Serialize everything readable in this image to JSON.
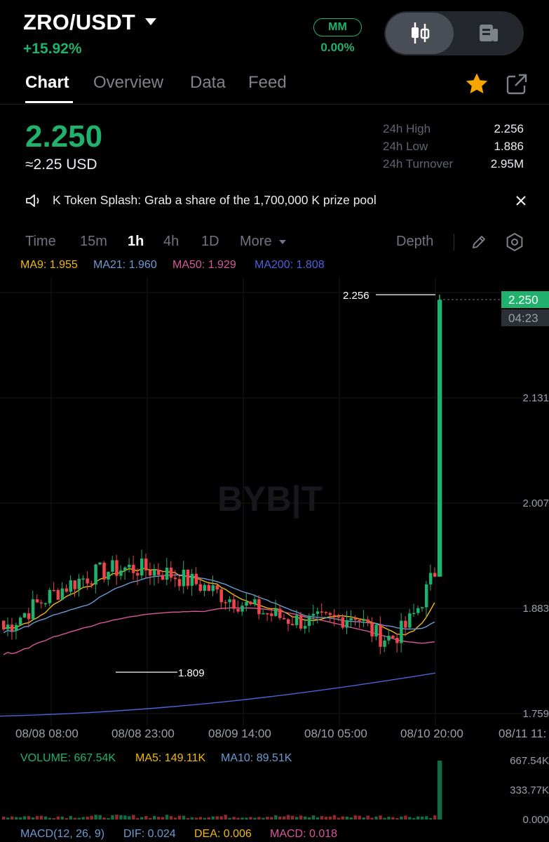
{
  "header": {
    "pair": "ZRO/USDT",
    "change": "+15.92%",
    "mm_label": "MM",
    "mm_value": "0.00%"
  },
  "tabs": [
    {
      "label": "Chart",
      "active": true
    },
    {
      "label": "Overview",
      "active": false
    },
    {
      "label": "Data",
      "active": false
    },
    {
      "label": "Feed",
      "active": false
    }
  ],
  "price": {
    "last": "2.250",
    "usd": "≈2.25 USD"
  },
  "stats": [
    {
      "label": "24h High",
      "value": "2.256"
    },
    {
      "label": "24h Low",
      "value": "1.886"
    },
    {
      "label": "24h Turnover",
      "value": "2.95M"
    }
  ],
  "banner": {
    "text": "K Token Splash: Grab a share of the 1,700,000 K prize pool"
  },
  "timeframes": [
    {
      "label": "Time",
      "active": false
    },
    {
      "label": "15m",
      "active": false
    },
    {
      "label": "1h",
      "active": true
    },
    {
      "label": "4h",
      "active": false
    },
    {
      "label": "1D",
      "active": false
    },
    {
      "label": "More",
      "active": false
    }
  ],
  "depth_label": "Depth",
  "ma_legend": [
    {
      "text": "MA9: 1.955",
      "color": "#f0b90b"
    },
    {
      "text": "MA21: 1.960",
      "color": "#6c9bd2"
    },
    {
      "text": "MA50: 1.929",
      "color": "#d8589a"
    },
    {
      "text": "MA200: 1.808",
      "color": "#4b63d9"
    }
  ],
  "chart": {
    "watermark": "BYB|T",
    "price_ticks": [
      "2.131",
      "2.007",
      "1.883",
      "1.759"
    ],
    "high_marker": "2.256",
    "low_marker": "1.809",
    "current_price_tag": "2.250",
    "countdown": "04:23",
    "time_labels": [
      "08/08 08:00",
      "08/08 23:00",
      "08/09 14:00",
      "08/10 05:00",
      "08/10 20:00",
      "08/11 11:"
    ]
  },
  "chart_data": {
    "type": "candlestick",
    "interval": "1h",
    "ylim": [
      1.759,
      2.256
    ],
    "highest": 2.256,
    "lowest": 1.809,
    "last": 2.25,
    "moving_averages": {
      "MA9": 1.955,
      "MA21": 1.96,
      "MA50": 1.929,
      "MA200": 1.808
    }
  },
  "volume": {
    "legend": [
      {
        "text": "VOLUME: 667.54K",
        "color": "#20b26c"
      },
      {
        "text": "MA5: 149.11K",
        "color": "#f0b90b"
      },
      {
        "text": "MA10: 89.51K",
        "color": "#6c9bd2"
      }
    ],
    "axis": [
      "667.54K",
      "333.77K",
      "0.000"
    ]
  },
  "macd": {
    "legend": [
      {
        "text": "MACD(12, 26, 9)",
        "color": "#6c9bd2"
      },
      {
        "text": "DIF: 0.024",
        "color": "#6c9bd2"
      },
      {
        "text": "DEA: 0.006",
        "color": "#f0b90b"
      },
      {
        "text": "MACD: 0.018",
        "color": "#d8589a"
      }
    ]
  },
  "colors": {
    "up": "#20b26c",
    "down": "#ef454a",
    "background": "#000000"
  }
}
